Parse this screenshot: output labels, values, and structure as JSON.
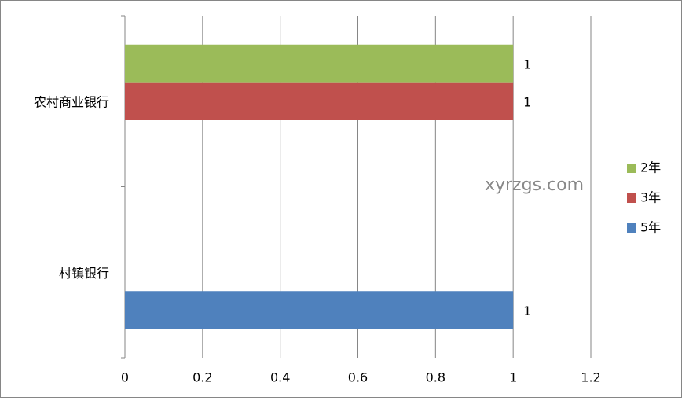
{
  "chart_data": {
    "type": "hbar",
    "categories": [
      "农村商业银行",
      "村镇银行"
    ],
    "series": [
      {
        "name": "2年",
        "color": "#9bbb59",
        "values": [
          1,
          null
        ]
      },
      {
        "name": "3年",
        "color": "#c0504d",
        "values": [
          1,
          null
        ]
      },
      {
        "name": "5年",
        "color": "#4f81bd",
        "values": [
          null,
          1
        ]
      }
    ],
    "xlim": [
      0,
      1.2
    ],
    "xticks": [
      0,
      0.2,
      0.4,
      0.6,
      0.8,
      1,
      1.2
    ],
    "grid": true,
    "legend": "right",
    "watermark": "xyrzgs.com"
  }
}
